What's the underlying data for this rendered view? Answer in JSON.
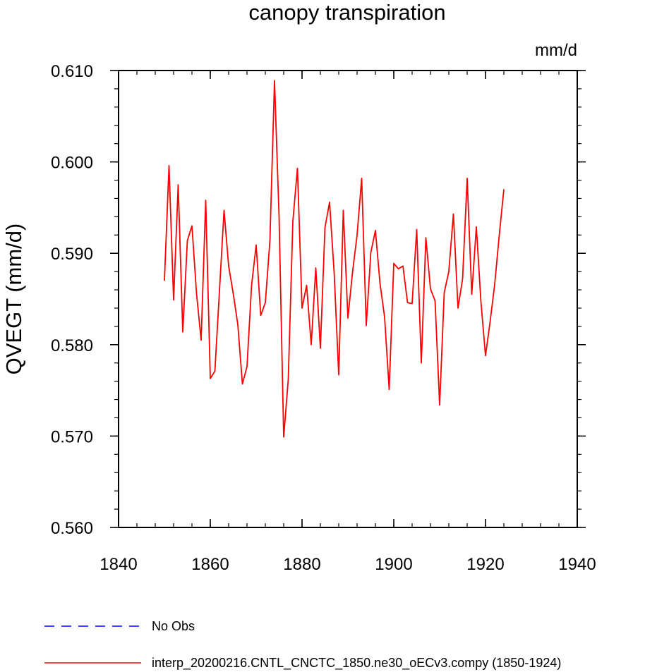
{
  "chart_data": {
    "type": "line",
    "title": "canopy transpiration",
    "units": "mm/d",
    "ylabel": "QVEGT  (mm/d)",
    "xlabel": "",
    "xlim": [
      1840,
      1940
    ],
    "ylim": [
      0.56,
      0.61
    ],
    "xticks": [
      1840,
      1860,
      1880,
      1900,
      1920,
      1940
    ],
    "xtick_labels": [
      "1840",
      "1860",
      "1880",
      "1900",
      "1920",
      "1940"
    ],
    "yticks": [
      0.56,
      0.57,
      0.58,
      0.59,
      0.6,
      0.61
    ],
    "ytick_labels": [
      "0.560",
      "0.570",
      "0.580",
      "0.590",
      "0.600",
      "0.610"
    ],
    "grid": false,
    "legend_position": "bottom-left",
    "legend": [
      {
        "label": "No Obs",
        "color": "#0000ff",
        "style": "dashed"
      },
      {
        "label": "interp_20200216.CNTL_CNCTC_1850.ne30_oECv3.compy (1850-1924)",
        "color": "#ff0000",
        "style": "solid"
      }
    ],
    "series": [
      {
        "color": "#ff0000",
        "x": [
          1850,
          1851,
          1852,
          1853,
          1854,
          1855,
          1856,
          1857,
          1858,
          1859,
          1860,
          1861,
          1862,
          1863,
          1864,
          1865,
          1866,
          1867,
          1868,
          1869,
          1870,
          1871,
          1872,
          1873,
          1874,
          1875,
          1876,
          1877,
          1878,
          1879,
          1880,
          1881,
          1882,
          1883,
          1884,
          1885,
          1886,
          1887,
          1888,
          1889,
          1890,
          1891,
          1892,
          1893,
          1894,
          1895,
          1896,
          1897,
          1898,
          1899,
          1900,
          1901,
          1902,
          1903,
          1904,
          1905,
          1906,
          1907,
          1908,
          1909,
          1910,
          1911,
          1912,
          1913,
          1914,
          1915,
          1916,
          1917,
          1918,
          1919,
          1920,
          1921,
          1922,
          1923,
          1924
        ],
        "values": [
          0.587,
          0.5996,
          0.5849,
          0.5975,
          0.5814,
          0.5914,
          0.593,
          0.5856,
          0.5805,
          0.5958,
          0.5763,
          0.5771,
          0.5859,
          0.5947,
          0.5886,
          0.5856,
          0.5822,
          0.5757,
          0.5776,
          0.5865,
          0.5909,
          0.5832,
          0.5846,
          0.5914,
          0.6089,
          0.5939,
          0.5699,
          0.5762,
          0.5935,
          0.5993,
          0.584,
          0.5865,
          0.58,
          0.5884,
          0.5796,
          0.5928,
          0.5956,
          0.5879,
          0.5767,
          0.5947,
          0.5829,
          0.5879,
          0.592,
          0.5982,
          0.5821,
          0.5901,
          0.5925,
          0.5867,
          0.583,
          0.5751,
          0.5889,
          0.5883,
          0.5886,
          0.5846,
          0.5845,
          0.5926,
          0.578,
          0.5917,
          0.5861,
          0.5848,
          0.5734,
          0.5857,
          0.588,
          0.5943,
          0.584,
          0.5872,
          0.5982,
          0.5855,
          0.5929,
          0.5847,
          0.5788,
          0.5825,
          0.5866,
          0.592,
          0.597
        ]
      }
    ]
  }
}
